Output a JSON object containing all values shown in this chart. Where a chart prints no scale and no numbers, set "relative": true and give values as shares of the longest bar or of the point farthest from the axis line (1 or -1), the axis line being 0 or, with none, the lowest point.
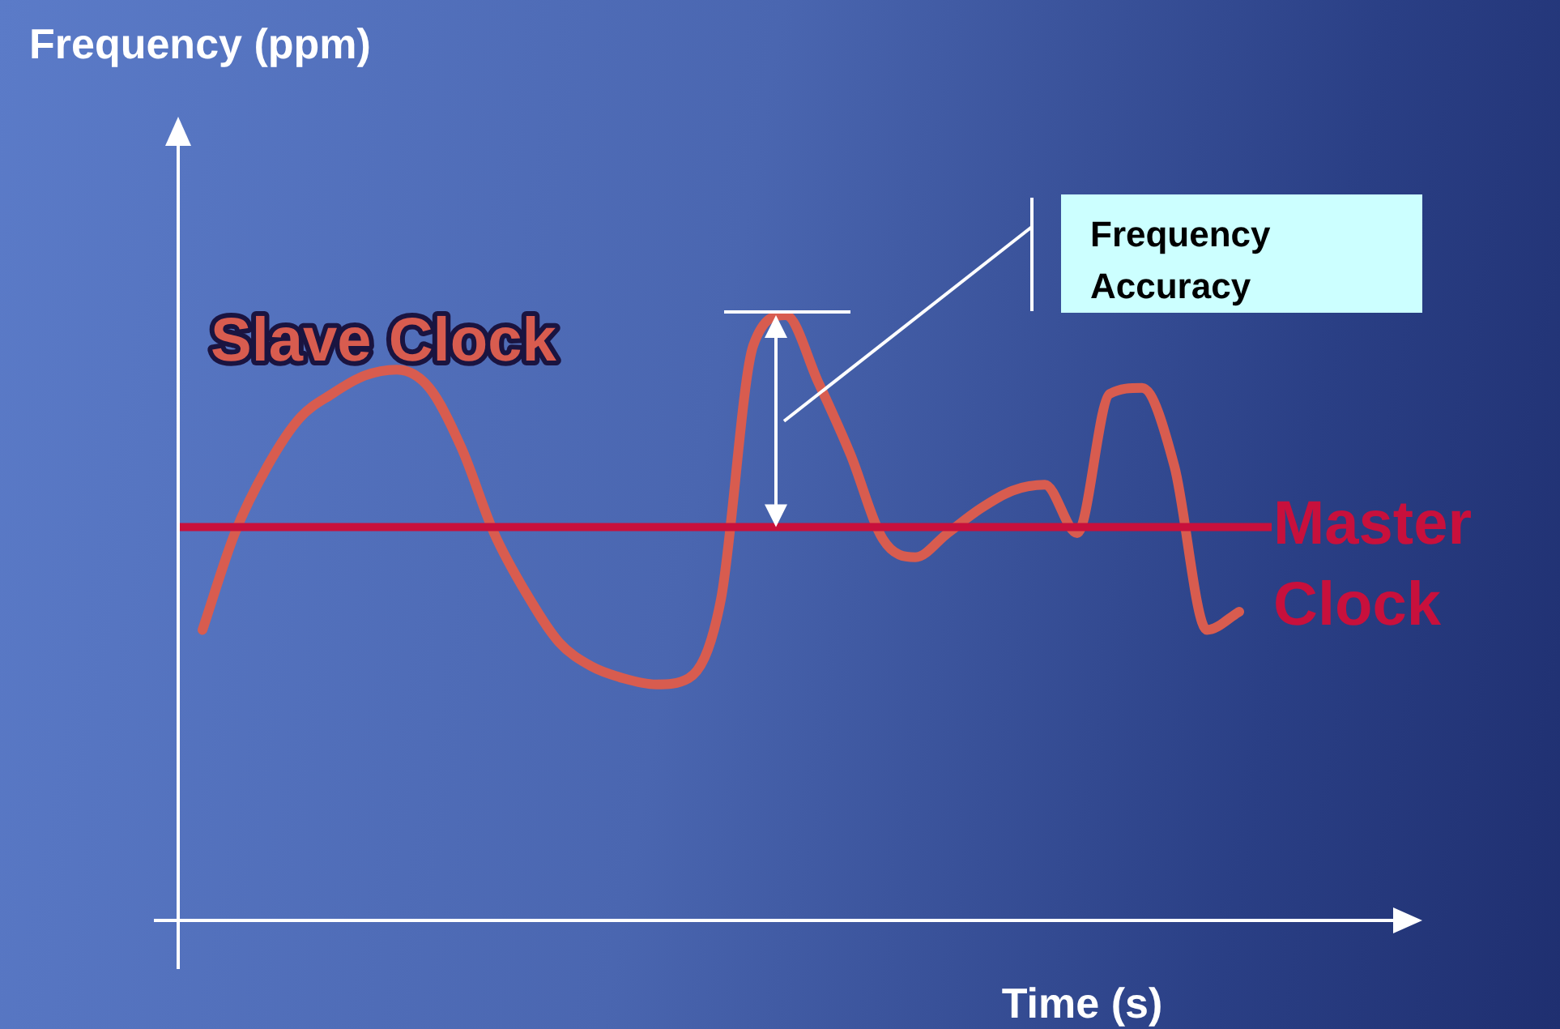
{
  "chart_data": {
    "type": "line",
    "relative": true,
    "xlabel": "Time (s)",
    "categories": [
      null,
      null,
      null,
      null,
      null,
      null,
      null,
      null,
      null,
      null,
      null,
      null,
      null,
      null,
      null,
      null,
      null,
      null,
      null,
      null,
      null,
      null,
      null,
      null,
      null,
      null,
      null,
      null,
      null,
      null,
      null,
      null,
      null
    ],
    "series": [
      {
        "name": "Slave Clock",
        "color": "#d85c4f",
        "values": [
          0.48,
          0.64,
          0.75,
          0.83,
          0.87,
          0.9,
          0.91,
          0.88,
          0.78,
          0.64,
          0.54,
          0.46,
          0.42,
          0.4,
          0.39,
          0.4,
          0.53,
          0.95,
          1.0,
          0.89,
          0.77,
          0.63,
          0.6,
          0.64,
          0.68,
          0.71,
          0.72,
          0.64,
          0.87,
          0.88,
          0.75,
          0.48,
          0.51
        ]
      }
    ],
    "ref_lines": [
      {
        "axis": "y",
        "value": 0.65,
        "label": "Master Clock",
        "color": "#c8103c"
      }
    ],
    "annotations": [
      "Frequency (ppm)",
      "Frequency Accuracy"
    ],
    "legend": false,
    "marker": "none",
    "line_style": "solid"
  }
}
